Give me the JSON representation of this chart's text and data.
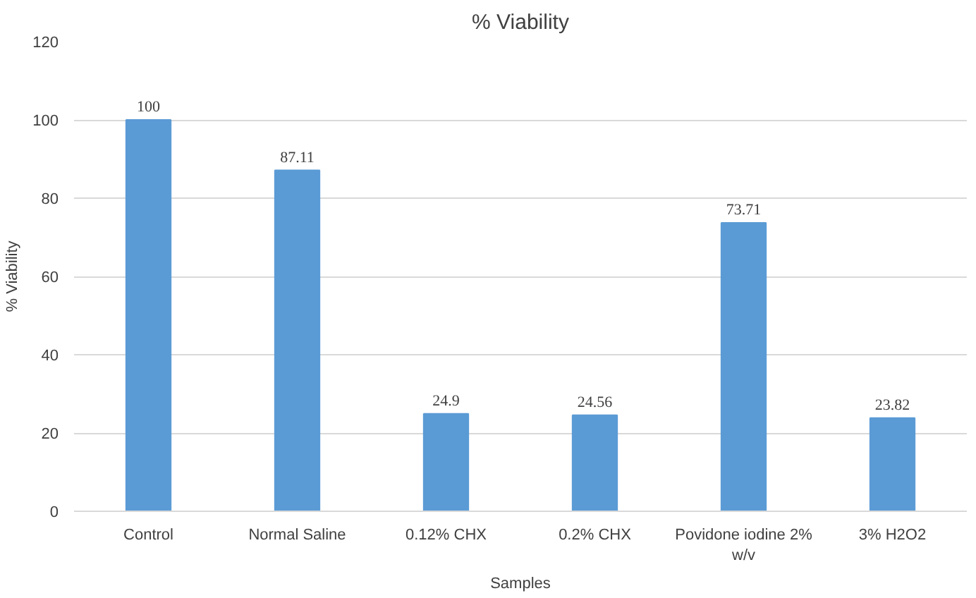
{
  "chart_data": {
    "type": "bar",
    "title": "% Viability",
    "xlabel": "Samples",
    "ylabel": "% Viability",
    "categories": [
      "Control",
      "Normal Saline",
      "0.12% CHX",
      "0.2% CHX",
      "Povidone iodine 2% w/v",
      "3% H2O2"
    ],
    "values": [
      100,
      87.11,
      24.9,
      24.56,
      73.71,
      23.82
    ],
    "color": "#5b9bd5",
    "ylim": [
      0,
      120
    ],
    "yticks": [
      0,
      20,
      40,
      60,
      80,
      100,
      120
    ],
    "grid": "y",
    "data_labels": true
  }
}
